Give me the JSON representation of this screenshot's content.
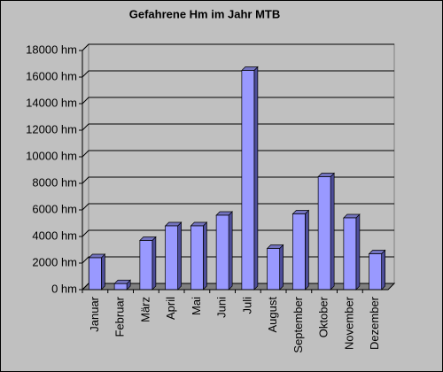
{
  "chart_data": {
    "type": "bar3d",
    "title": "Gefahrene Hm im Jahr MTB",
    "categories": [
      "Januar",
      "Februar",
      "März",
      "April",
      "Mai",
      "Juni",
      "Juli",
      "August",
      "September",
      "Oktober",
      "November",
      "Dezember"
    ],
    "values": [
      2400,
      450,
      3700,
      4800,
      4800,
      5600,
      16500,
      3100,
      5700,
      8500,
      5400,
      2700
    ],
    "color": "#9999ff",
    "ylim": [
      0,
      18000
    ],
    "yticks": [
      {
        "value": 0,
        "label": "0 hm"
      },
      {
        "value": 2000,
        "label": "2000 hm"
      },
      {
        "value": 4000,
        "label": "4000 hm"
      },
      {
        "value": 6000,
        "label": "6000 hm"
      },
      {
        "value": 8000,
        "label": "8000 hm"
      },
      {
        "value": 10000,
        "label": "10000 hm"
      },
      {
        "value": 12000,
        "label": "12000 hm"
      },
      {
        "value": 14000,
        "label": "14000 hm"
      },
      {
        "value": 16000,
        "label": "16000 hm"
      },
      {
        "value": 18000,
        "label": "18000 hm"
      }
    ],
    "grid": true
  }
}
